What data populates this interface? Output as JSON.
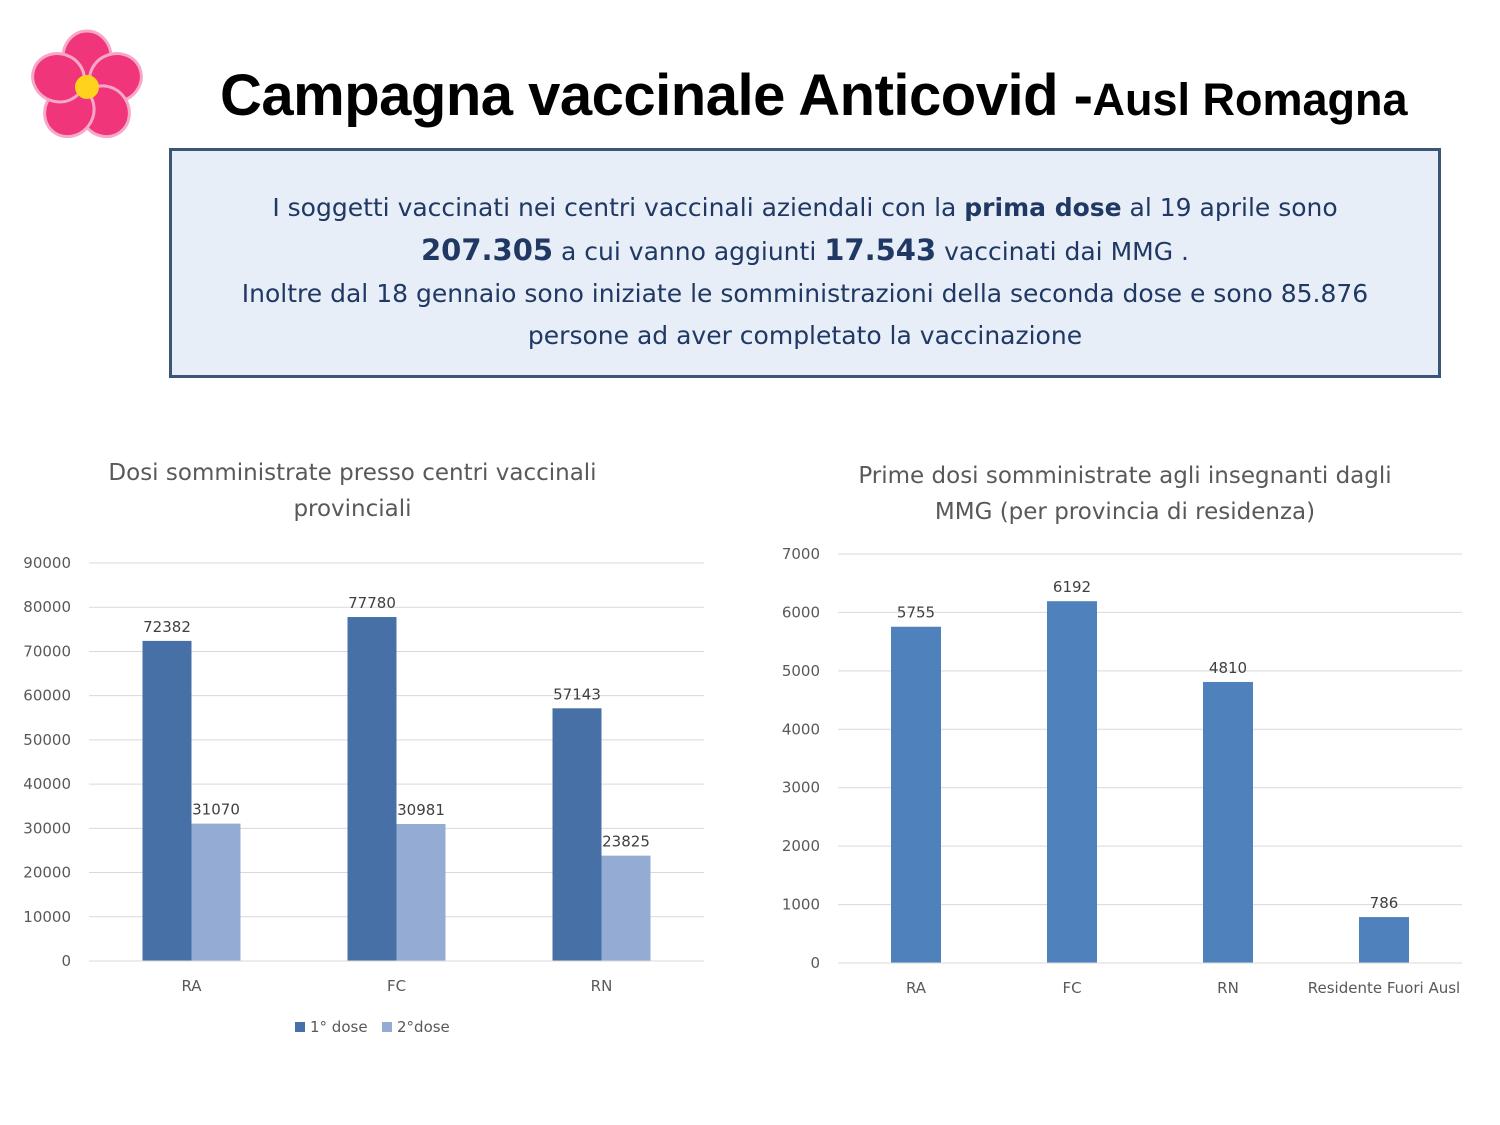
{
  "header": {
    "title_main": "Campagna vaccinale Anticovid -",
    "title_sub": "Ausl Romagna"
  },
  "logo": {
    "icon": "pink-flower-icon",
    "petal_color": "#f0357a",
    "center_color": "#ffd21e"
  },
  "info_box": {
    "line1_pre": "I soggetti vaccinati nei centri vaccinali aziendali con la ",
    "line1_bold": "prima dose",
    "line1_post": " al 19 aprile sono",
    "line2_num1": "207.305",
    "line2_mid": " a cui vanno aggiunti ",
    "line2_num2": "17.543",
    "line2_post": " vaccinati dai MMG .",
    "line3": "Inoltre dal 18 gennaio sono iniziate le somministrazioni della  seconda dose  e sono  85.876",
    "line4": "persone ad aver completato la vaccinazione"
  },
  "chart_data": [
    {
      "type": "bar",
      "title": "Dosi somministrate presso centri vaccinali provinciali",
      "title_lines": [
        "Dosi somministrate presso centri vaccinali",
        "provinciali"
      ],
      "categories": [
        "RA",
        "FC",
        "RN"
      ],
      "series": [
        {
          "name": "1° dose",
          "values": [
            72382,
            77780,
            57143
          ],
          "color": "#4770a7"
        },
        {
          "name": "2°dose",
          "values": [
            31070,
            30981,
            23825
          ],
          "color": "#94acd3"
        }
      ],
      "ylim": [
        0,
        90000
      ],
      "yticks": [
        0,
        10000,
        20000,
        30000,
        40000,
        50000,
        60000,
        70000,
        80000,
        90000
      ],
      "legend": "bottom",
      "grid": true
    },
    {
      "type": "bar",
      "title": "Prime dosi somministrate agli insegnanti dagli MMG (per provincia di residenza)",
      "title_lines": [
        "Prime dosi somministrate agli insegnanti dagli",
        "MMG (per provincia di residenza)"
      ],
      "categories": [
        "RA",
        "FC",
        "RN",
        "Residente Fuori Ausl"
      ],
      "series": [
        {
          "values": [
            5755,
            6192,
            4810,
            786
          ],
          "color": "#4f81bd"
        }
      ],
      "ylim": [
        0,
        7000
      ],
      "yticks": [
        0,
        1000,
        2000,
        3000,
        4000,
        5000,
        6000,
        7000
      ],
      "legend": "none",
      "grid": true
    }
  ]
}
